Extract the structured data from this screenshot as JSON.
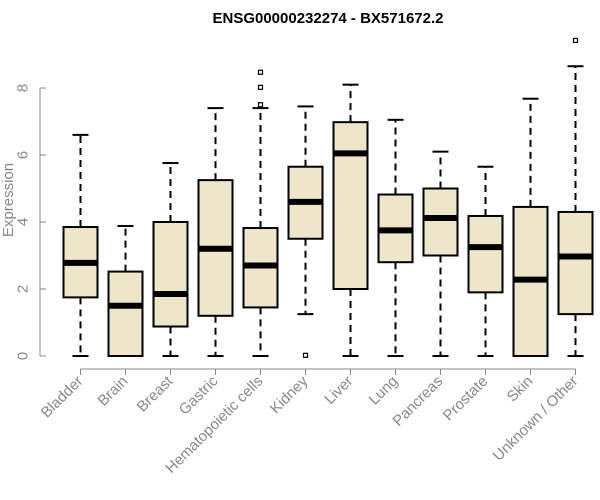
{
  "chart_data": {
    "type": "box",
    "title": "ENSG00000232274 - BX571672.2",
    "xlabel": "",
    "ylabel": "Expression",
    "ylim": [
      0,
      9.8
    ],
    "yticks": [
      0,
      2,
      4,
      6,
      8
    ],
    "categories": [
      "Bladder",
      "Brain",
      "Breast",
      "Gastric",
      "Hematopoietic cells",
      "Kidney",
      "Liver",
      "Lung",
      "Pancreas",
      "Prostate",
      "Skin",
      "Unknown / Other"
    ],
    "boxes": [
      {
        "category": "Bladder",
        "whisker_low": 0,
        "q1": 1.75,
        "median": 2.78,
        "q3": 3.85,
        "whisker_high": 6.6,
        "outliers": []
      },
      {
        "category": "Brain",
        "whisker_low": 0,
        "q1": 0,
        "median": 1.5,
        "q3": 2.52,
        "whisker_high": 3.88,
        "outliers": []
      },
      {
        "category": "Breast",
        "whisker_low": 0,
        "q1": 0.88,
        "median": 1.85,
        "q3": 4.0,
        "whisker_high": 5.76,
        "outliers": []
      },
      {
        "category": "Gastric",
        "whisker_low": 0,
        "q1": 1.2,
        "median": 3.2,
        "q3": 5.25,
        "whisker_high": 7.4,
        "outliers": []
      },
      {
        "category": "Hematopoietic cells",
        "whisker_low": 0,
        "q1": 1.45,
        "median": 2.7,
        "q3": 3.82,
        "whisker_high": 7.4,
        "outliers": [
          7.5,
          8.02,
          8.47
        ]
      },
      {
        "category": "Kidney",
        "whisker_low": 1.25,
        "q1": 3.5,
        "median": 4.6,
        "q3": 5.65,
        "whisker_high": 7.45,
        "outliers": [
          0.02
        ]
      },
      {
        "category": "Liver",
        "whisker_low": 0,
        "q1": 2.0,
        "median": 6.05,
        "q3": 6.98,
        "whisker_high": 8.1,
        "outliers": []
      },
      {
        "category": "Lung",
        "whisker_low": 0,
        "q1": 2.8,
        "median": 3.75,
        "q3": 4.82,
        "whisker_high": 7.05,
        "outliers": []
      },
      {
        "category": "Pancreas",
        "whisker_low": 0,
        "q1": 3.0,
        "median": 4.12,
        "q3": 5.0,
        "whisker_high": 6.1,
        "outliers": []
      },
      {
        "category": "Prostate",
        "whisker_low": 0,
        "q1": 1.9,
        "median": 3.25,
        "q3": 4.18,
        "whisker_high": 5.65,
        "outliers": []
      },
      {
        "category": "Skin",
        "whisker_low": 0,
        "q1": 0,
        "median": 2.28,
        "q3": 4.45,
        "whisker_high": 7.68,
        "outliers": []
      },
      {
        "category": "Unknown / Other",
        "whisker_low": 0,
        "q1": 1.25,
        "median": 2.97,
        "q3": 4.3,
        "whisker_high": 8.65,
        "outliers": [
          9.42
        ]
      }
    ],
    "box_fill": "#ede6cb",
    "box_stroke": "#000000",
    "axis_color": "#888888",
    "grid": false,
    "legend": "none"
  }
}
